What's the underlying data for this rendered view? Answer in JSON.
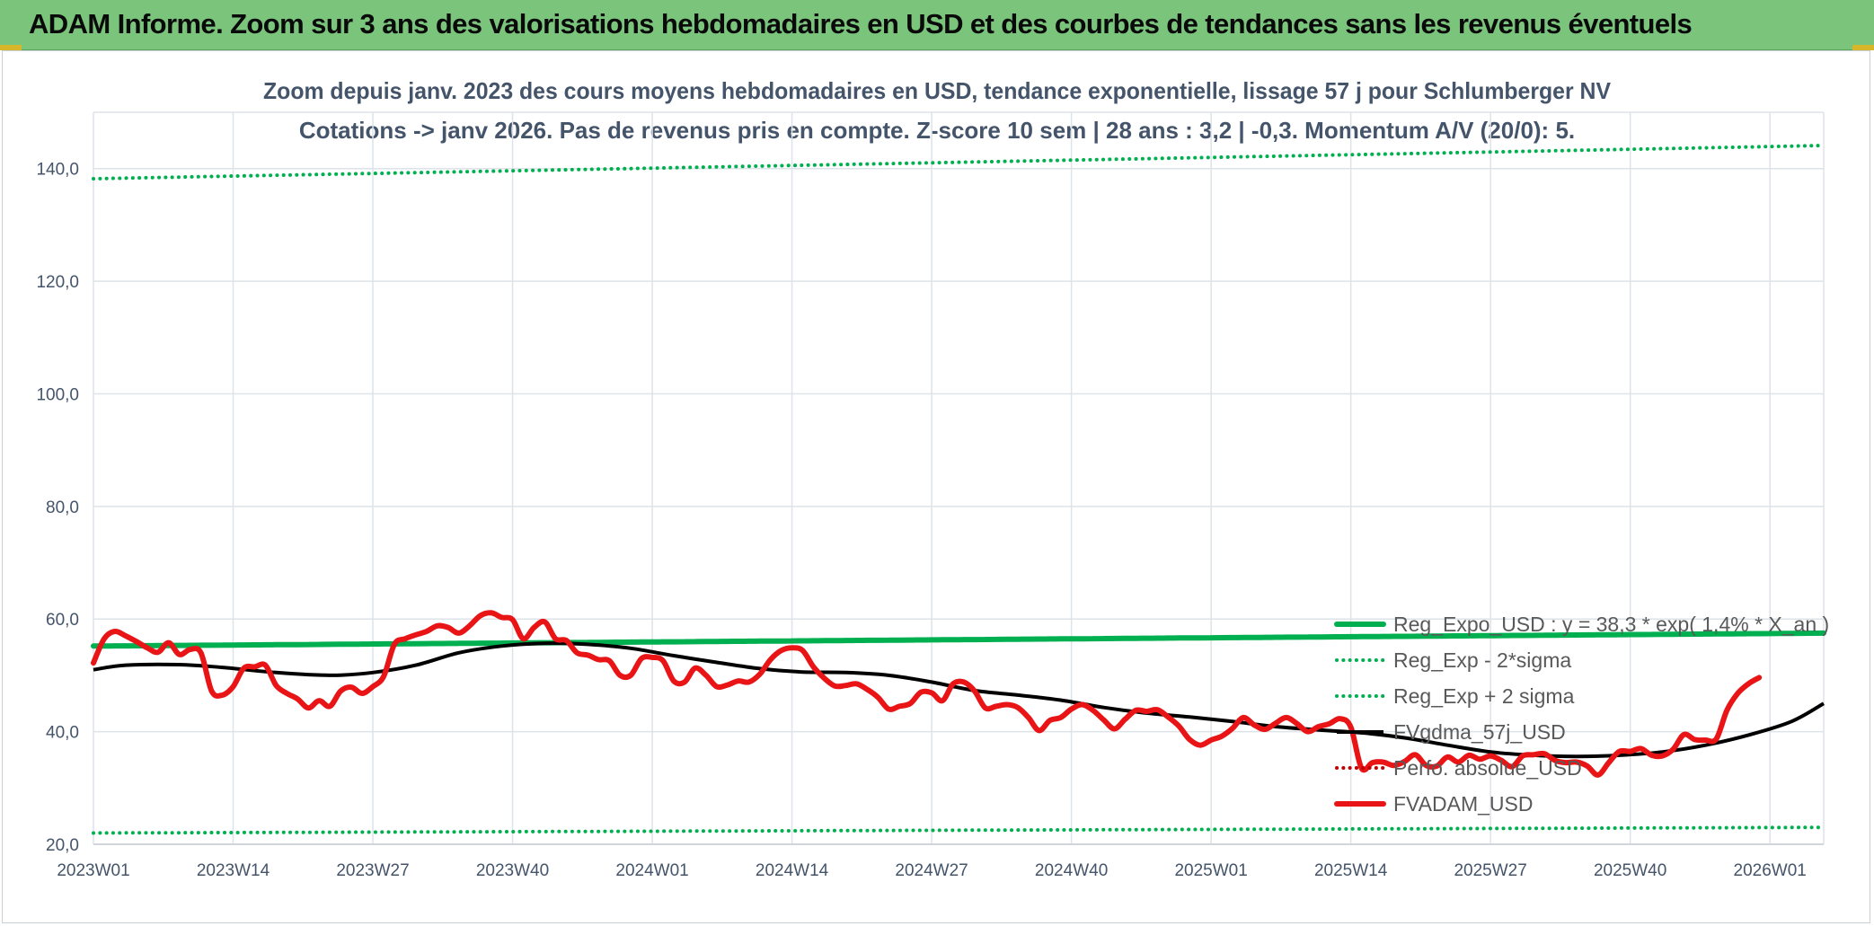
{
  "banner": {
    "title": "ADAM Informe. Zoom sur 3 ans des valorisations hebdomadaires en USD et des courbes de tendances sans les revenus éventuels"
  },
  "colors": {
    "banner_bg": "#7ac47c",
    "reg_expo": "#00b050",
    "sigma_band": "#00b050",
    "fvgdma": "#000000",
    "perfo": "#c00000",
    "fvadam": "#e81416",
    "axis_text": "#44546a"
  },
  "chart_data": {
    "type": "line",
    "title": "Zoom depuis janv. 2023 des cours moyens hebdomadaires en USD, tendance exponentielle, lissage 57 j pour Schlumberger NV",
    "subtitle": "Cotations -> janv 2026. Pas de revenus pris en compte. Z-score 10 sem | 28 ans : 3,2 | -0,3. Momentum A/V (20/0): 5.",
    "xlabel": "",
    "ylabel": "",
    "ylim": [
      20,
      150
    ],
    "yticks": [
      "20,0",
      "40,0",
      "60,0",
      "80,0",
      "100,0",
      "120,0",
      "140,0"
    ],
    "xticks": [
      "2023W01",
      "2023W14",
      "2023W27",
      "2023W40",
      "2024W01",
      "2024W14",
      "2024W27",
      "2024W40",
      "2025W01",
      "2025W14",
      "2025W27",
      "2025W40",
      "2026W01"
    ],
    "x_week_range": [
      0,
      161
    ],
    "grid": true,
    "legend_position": "right",
    "series": [
      {
        "name": "Reg_Expo_USD : y = 38,3 * exp( 1,4% * X_an )",
        "style": "solid-thick",
        "color": "#00b050",
        "start": 55.2,
        "end": 57.5
      },
      {
        "name": "Reg_Exp - 2*sigma",
        "style": "dotted",
        "color": "#00b050",
        "start": 22.0,
        "end": 23.0
      },
      {
        "name": "Reg_Exp + 2 sigma",
        "style": "dotted",
        "color": "#00b050",
        "start": 138.2,
        "end": 144.1
      },
      {
        "name": "FVgdma_57j_USD",
        "style": "solid",
        "color": "#000000",
        "points": [
          [
            0,
            51.0
          ],
          [
            3,
            51.8
          ],
          [
            8,
            51.9
          ],
          [
            12,
            51.4
          ],
          [
            17,
            50.5
          ],
          [
            22,
            50.0
          ],
          [
            26,
            50.5
          ],
          [
            30,
            51.8
          ],
          [
            34,
            54.0
          ],
          [
            38,
            55.2
          ],
          [
            42,
            55.7
          ],
          [
            46,
            55.5
          ],
          [
            50,
            54.8
          ],
          [
            54,
            53.5
          ],
          [
            58,
            52.3
          ],
          [
            62,
            51.2
          ],
          [
            66,
            50.6
          ],
          [
            70,
            50.5
          ],
          [
            74,
            50.0
          ],
          [
            78,
            48.8
          ],
          [
            82,
            47.3
          ],
          [
            86,
            46.5
          ],
          [
            90,
            45.6
          ],
          [
            94,
            44.3
          ],
          [
            98,
            43.3
          ],
          [
            102,
            42.6
          ],
          [
            106,
            41.8
          ],
          [
            110,
            40.9
          ],
          [
            114,
            40.3
          ],
          [
            118,
            39.8
          ],
          [
            122,
            38.9
          ],
          [
            126,
            37.6
          ],
          [
            130,
            36.4
          ],
          [
            134,
            35.8
          ],
          [
            138,
            35.6
          ],
          [
            142,
            35.8
          ],
          [
            146,
            36.4
          ],
          [
            150,
            37.6
          ],
          [
            154,
            39.4
          ],
          [
            158,
            41.8
          ],
          [
            161,
            45.0
          ]
        ]
      },
      {
        "name": "Perfo. absolue_USD",
        "style": "dotted",
        "color": "#c00000",
        "points": []
      },
      {
        "name": "FVADAM_USD",
        "style": "solid-thick",
        "color": "#e81416",
        "points": [
          [
            0,
            52.2
          ],
          [
            1,
            56.5
          ],
          [
            2,
            57.8
          ],
          [
            3,
            57.0
          ],
          [
            4,
            56.0
          ],
          [
            5,
            54.9
          ],
          [
            6,
            54.1
          ],
          [
            7,
            55.8
          ],
          [
            8,
            53.7
          ],
          [
            9,
            54.6
          ],
          [
            10,
            54.0
          ],
          [
            11,
            47.2
          ],
          [
            12,
            46.5
          ],
          [
            13,
            48.0
          ],
          [
            14,
            51.3
          ],
          [
            15,
            51.5
          ],
          [
            16,
            51.8
          ],
          [
            17,
            48.2
          ],
          [
            18,
            46.8
          ],
          [
            19,
            45.8
          ],
          [
            20,
            44.2
          ],
          [
            21,
            45.5
          ],
          [
            22,
            44.5
          ],
          [
            23,
            47.2
          ],
          [
            24,
            47.9
          ],
          [
            25,
            46.8
          ],
          [
            26,
            48.0
          ],
          [
            27,
            49.8
          ],
          [
            28,
            55.5
          ],
          [
            29,
            56.5
          ],
          [
            30,
            57.2
          ],
          [
            31,
            57.8
          ],
          [
            32,
            58.8
          ],
          [
            33,
            58.5
          ],
          [
            34,
            57.5
          ],
          [
            35,
            58.8
          ],
          [
            36,
            60.6
          ],
          [
            37,
            61.1
          ],
          [
            38,
            60.3
          ],
          [
            39,
            59.9
          ],
          [
            40,
            56.5
          ],
          [
            41,
            58.5
          ],
          [
            42,
            59.5
          ],
          [
            43,
            56.5
          ],
          [
            44,
            56.2
          ],
          [
            45,
            54.0
          ],
          [
            46,
            53.6
          ],
          [
            47,
            52.8
          ],
          [
            48,
            52.6
          ],
          [
            49,
            50.0
          ],
          [
            50,
            50.0
          ],
          [
            51,
            53.0
          ],
          [
            52,
            53.2
          ],
          [
            53,
            52.6
          ],
          [
            54,
            49.0
          ],
          [
            55,
            48.8
          ],
          [
            56,
            51.3
          ],
          [
            57,
            50.0
          ],
          [
            58,
            48.0
          ],
          [
            59,
            48.3
          ],
          [
            60,
            49.0
          ],
          [
            61,
            48.8
          ],
          [
            62,
            50.2
          ],
          [
            63,
            52.8
          ],
          [
            64,
            54.4
          ],
          [
            65,
            54.9
          ],
          [
            66,
            54.4
          ],
          [
            67,
            51.5
          ],
          [
            68,
            49.5
          ],
          [
            69,
            48.1
          ],
          [
            70,
            48.2
          ],
          [
            71,
            48.5
          ],
          [
            72,
            47.5
          ],
          [
            73,
            46.1
          ],
          [
            74,
            44.0
          ],
          [
            75,
            44.5
          ],
          [
            76,
            45.0
          ],
          [
            77,
            47.0
          ],
          [
            78,
            46.9
          ],
          [
            79,
            45.5
          ],
          [
            80,
            48.5
          ],
          [
            81,
            48.8
          ],
          [
            82,
            47.2
          ],
          [
            83,
            44.2
          ],
          [
            84,
            44.5
          ],
          [
            85,
            44.8
          ],
          [
            86,
            44.3
          ],
          [
            87,
            42.5
          ],
          [
            88,
            40.2
          ],
          [
            89,
            42.0
          ],
          [
            90,
            42.5
          ],
          [
            91,
            44.0
          ],
          [
            92,
            44.8
          ],
          [
            93,
            43.8
          ],
          [
            94,
            42.1
          ],
          [
            95,
            40.5
          ],
          [
            96,
            42.2
          ],
          [
            97,
            43.8
          ],
          [
            98,
            43.6
          ],
          [
            99,
            43.9
          ],
          [
            100,
            42.6
          ],
          [
            101,
            41.0
          ],
          [
            102,
            38.6
          ],
          [
            103,
            37.6
          ],
          [
            104,
            38.5
          ],
          [
            105,
            39.2
          ],
          [
            106,
            40.6
          ],
          [
            107,
            42.5
          ],
          [
            108,
            41.2
          ],
          [
            109,
            40.4
          ],
          [
            110,
            41.5
          ],
          [
            111,
            42.5
          ],
          [
            112,
            41.4
          ],
          [
            113,
            40.0
          ],
          [
            114,
            40.9
          ],
          [
            115,
            41.4
          ],
          [
            116,
            42.3
          ],
          [
            117,
            40.8
          ],
          [
            118,
            33.5
          ],
          [
            119,
            34.5
          ],
          [
            120,
            34.6
          ],
          [
            121,
            34.0
          ],
          [
            122,
            34.7
          ],
          [
            123,
            35.9
          ],
          [
            124,
            34.0
          ],
          [
            125,
            33.9
          ],
          [
            126,
            35.5
          ],
          [
            127,
            34.6
          ],
          [
            128,
            35.8
          ],
          [
            129,
            35.1
          ],
          [
            130,
            35.7
          ],
          [
            131,
            34.9
          ],
          [
            132,
            33.8
          ],
          [
            133,
            35.7
          ],
          [
            134,
            35.9
          ],
          [
            135,
            36.1
          ],
          [
            136,
            34.9
          ],
          [
            137,
            34.5
          ],
          [
            138,
            34.6
          ],
          [
            139,
            33.9
          ],
          [
            140,
            32.3
          ],
          [
            141,
            34.5
          ],
          [
            142,
            36.5
          ],
          [
            143,
            36.5
          ],
          [
            144,
            37.0
          ],
          [
            145,
            35.8
          ],
          [
            146,
            35.7
          ],
          [
            147,
            36.9
          ],
          [
            148,
            39.5
          ],
          [
            149,
            38.6
          ],
          [
            150,
            38.5
          ],
          [
            151,
            38.7
          ],
          [
            152,
            43.8
          ],
          [
            153,
            46.8
          ],
          [
            154,
            48.5
          ],
          [
            155,
            49.6
          ]
        ]
      }
    ]
  }
}
